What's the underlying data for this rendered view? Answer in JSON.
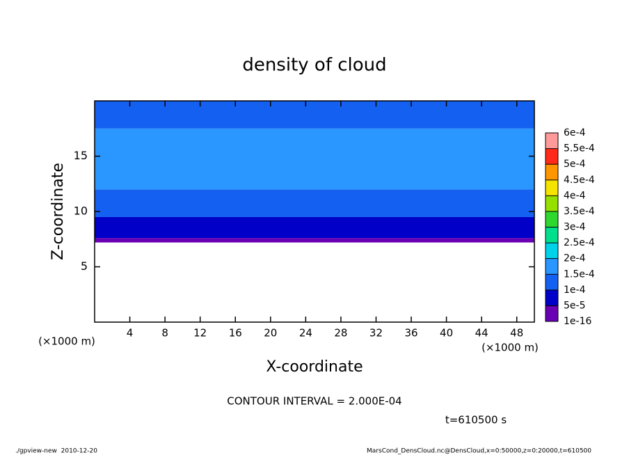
{
  "chart_data": {
    "type": "contour",
    "title": "density of cloud",
    "x_label": "X-coordinate",
    "y_label": "Z-coordinate",
    "x_unit": "(×1000 m)",
    "y_unit": "(×1000 m)",
    "contour_note": "CONTOUR INTERVAL = 2.000E-04",
    "time_note": "t=610500 s",
    "footer_left": "./gpview-new  2010-12-20",
    "footer_right": "MarsCond_DensCloud.nc@DensCloud,x=0:50000,z=0:20000,t=610500",
    "xlim": [
      0,
      50
    ],
    "ylim": [
      0,
      20
    ],
    "xticks": [
      4,
      8,
      12,
      16,
      20,
      24,
      28,
      32,
      36,
      40,
      44,
      48
    ],
    "yticks": [
      5,
      10,
      15
    ],
    "bands": {
      "z": [
        7.2,
        7.6,
        9.5,
        12,
        17.5,
        20
      ],
      "values": [
        3e-05,
        7e-05,
        0.00012,
        0.00017,
        0.00012
      ]
    },
    "levels": [
      {
        "value": 1e-16,
        "label": "1e-16"
      },
      {
        "value": 5e-05,
        "label": "5e-5"
      },
      {
        "value": 0.0001,
        "label": "1e-4"
      },
      {
        "value": 0.00015,
        "label": "1.5e-4"
      },
      {
        "value": 0.0002,
        "label": "2e-4"
      },
      {
        "value": 0.00025,
        "label": "2.5e-4"
      },
      {
        "value": 0.0003,
        "label": "3e-4"
      },
      {
        "value": 0.00035,
        "label": "3.5e-4"
      },
      {
        "value": 0.0004,
        "label": "4e-4"
      },
      {
        "value": 0.00045,
        "label": "4.5e-4"
      },
      {
        "value": 0.0005,
        "label": "5e-4"
      },
      {
        "value": 0.00055,
        "label": "5.5e-4"
      },
      {
        "value": 0.0006,
        "label": "6e-4"
      }
    ],
    "colors": [
      "#6a00b4",
      "#0000c8",
      "#1460f0",
      "#2a96ff",
      "#00d2ea",
      "#00e08c",
      "#2ed82e",
      "#96e000",
      "#f4e400",
      "#ff9600",
      "#ff2a1a",
      "#ff9a9a"
    ]
  }
}
